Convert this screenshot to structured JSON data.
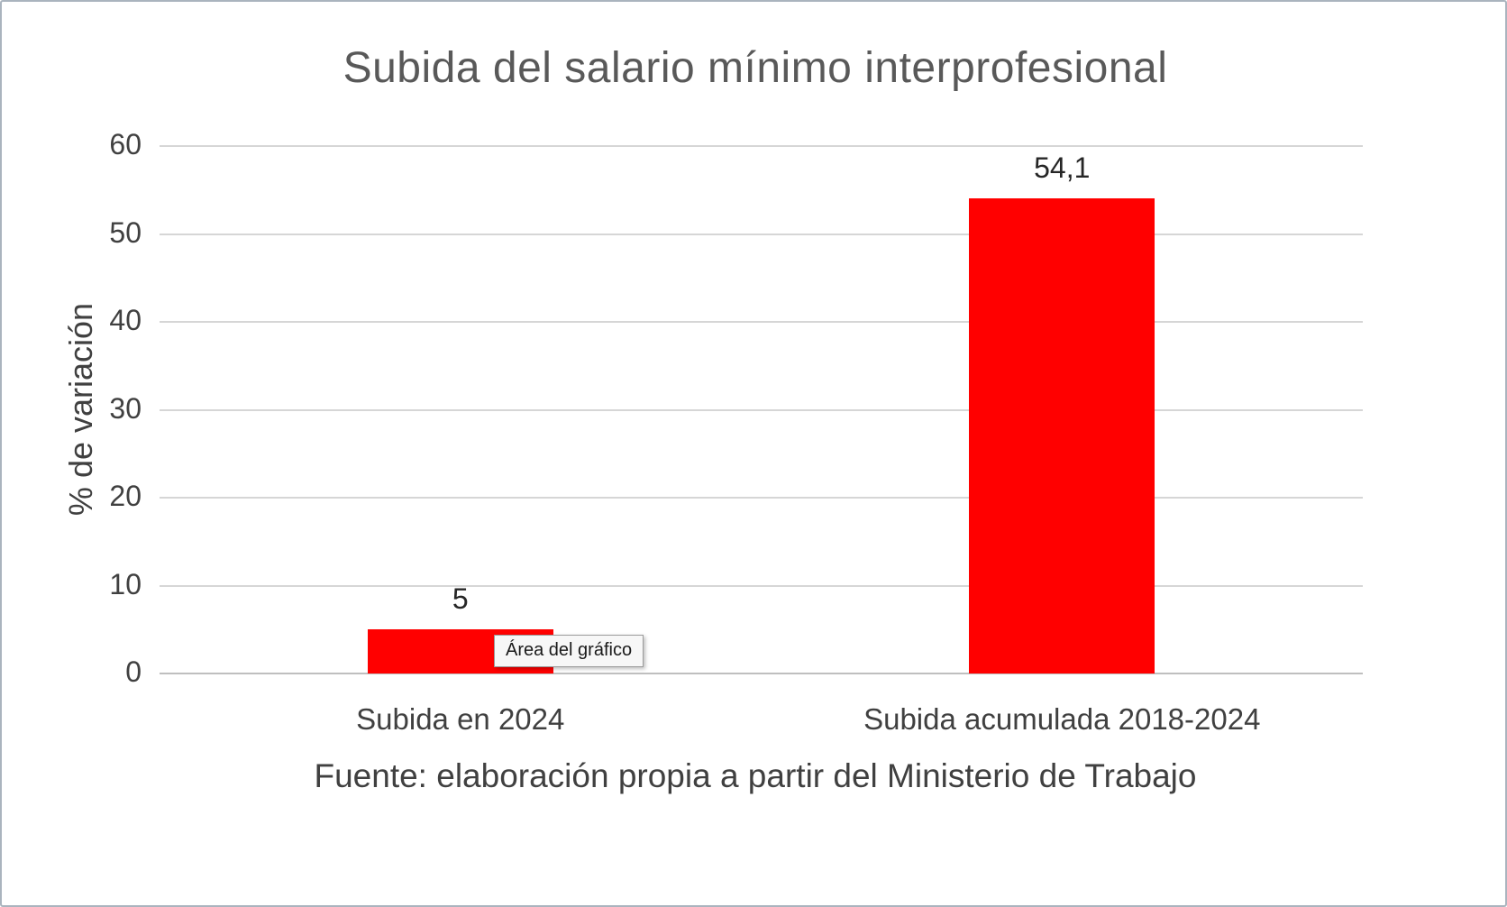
{
  "chart_data": {
    "type": "bar",
    "title": "Subida del salario mínimo interprofesional",
    "categories": [
      "Subida en 2024",
      "Subida acumulada 2018-2024"
    ],
    "values": [
      5,
      54.1
    ],
    "value_labels": [
      "5",
      "54,1"
    ],
    "xlabel": "",
    "ylabel": "% de variación",
    "ylim": [
      0,
      60
    ],
    "yticks": [
      0,
      10,
      20,
      30,
      40,
      50,
      60
    ],
    "grid": true,
    "legend": false,
    "bar_color": "#ff0000",
    "source": "Fuente: elaboración propia a partir del Ministerio de Trabajo"
  },
  "tooltip": {
    "label": "Área del gráfico"
  }
}
